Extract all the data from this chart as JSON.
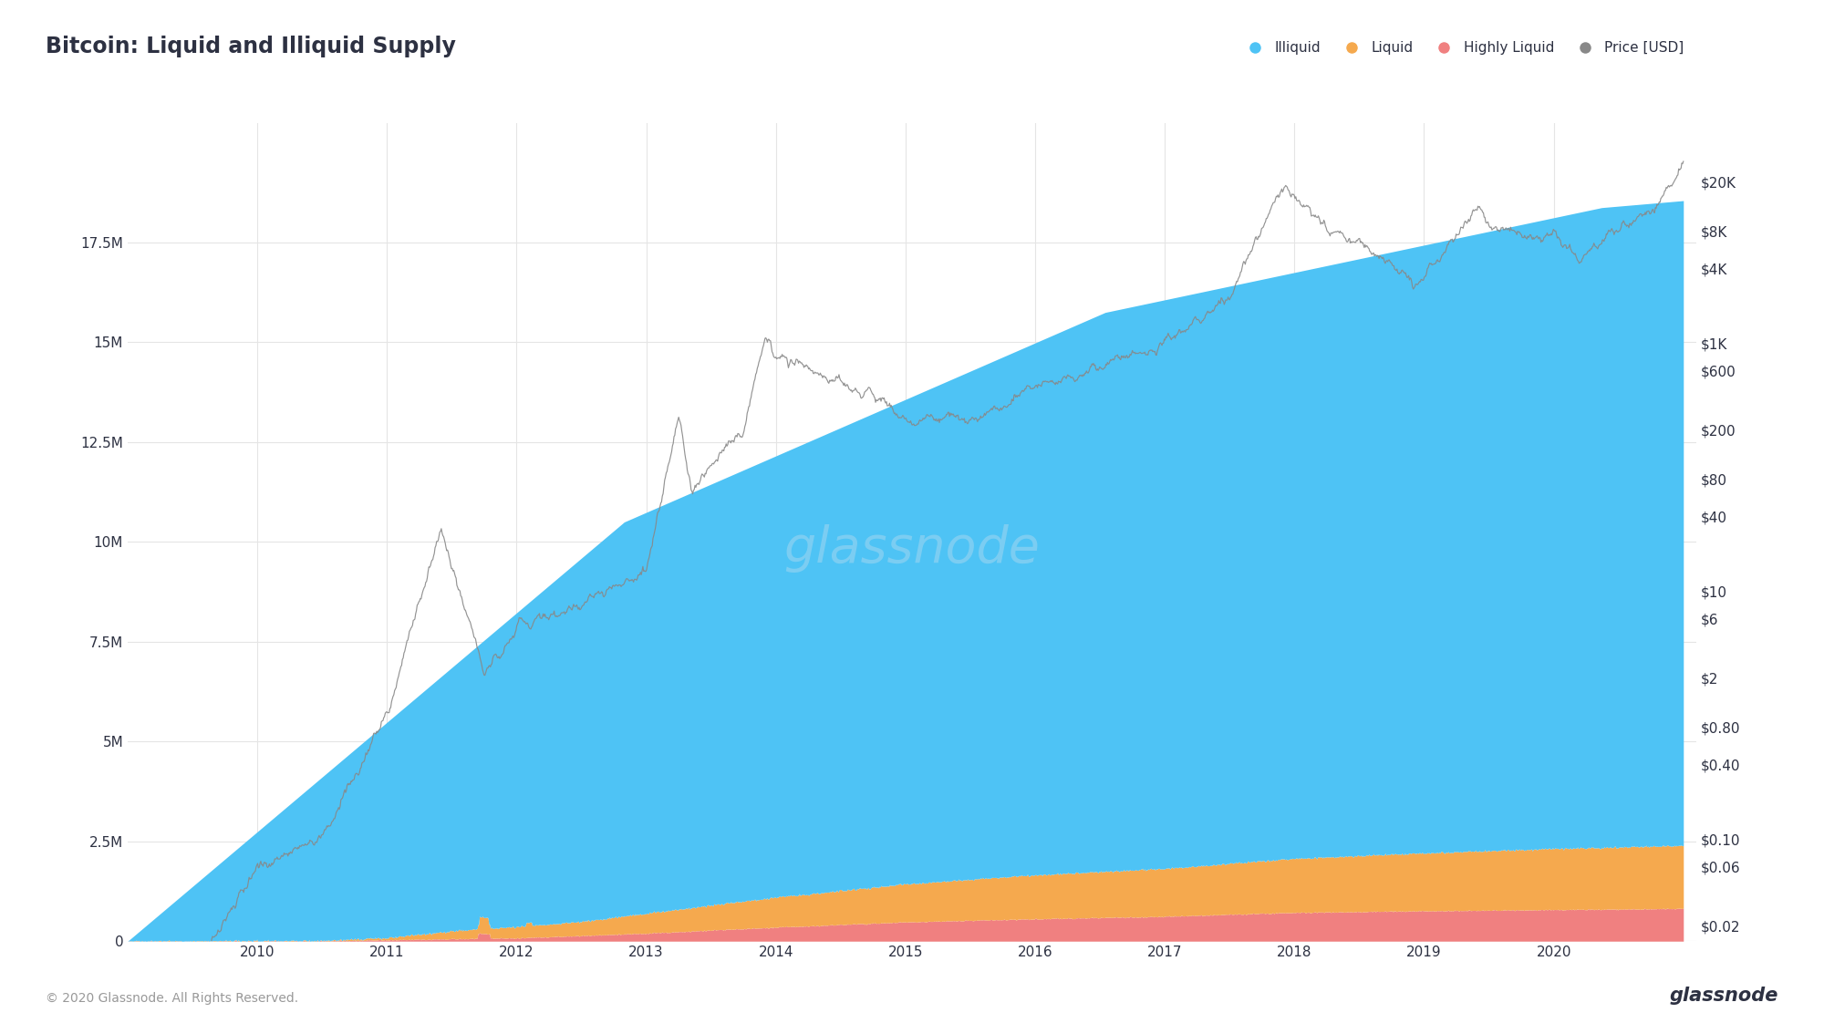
{
  "title": "Bitcoin: Liquid and Illiquid Supply",
  "background_color": "#ffffff",
  "plot_bg_color": "#ffffff",
  "text_color": "#2d3142",
  "grid_color": "#e5e5e5",
  "watermark": "glassnode",
  "footer": "© 2020 Glassnode. All Rights Reserved.",
  "footer_right": "glassnode",
  "colors": {
    "illiquid": "#4ec3f5",
    "liquid": "#f5a94e",
    "highly_liquid": "#f08080",
    "price": "#888888"
  },
  "y_left_ticks": [
    0,
    2500000,
    5000000,
    7500000,
    10000000,
    12500000,
    15000000,
    17500000
  ],
  "y_left_labels": [
    "0",
    "2.5M",
    "5M",
    "7.5M",
    "10M",
    "12.5M",
    "15M",
    "17.5M"
  ],
  "y_right_ticks_log": [
    0.02,
    0.06,
    0.1,
    0.4,
    0.8,
    2,
    6,
    10,
    40,
    80,
    200,
    600,
    1000,
    4000,
    8000,
    20000
  ],
  "y_right_labels": [
    "$0.02",
    "$0.06",
    "$0.10",
    "$0.40",
    "$0.80",
    "$2",
    "$6",
    "$10",
    "$40",
    "$80",
    "$200",
    "$600",
    "$1K",
    "$4K",
    "$8K",
    "$20K"
  ],
  "x_tick_years": [
    2010,
    2011,
    2012,
    2013,
    2014,
    2015,
    2016,
    2017,
    2018,
    2019,
    2020
  ],
  "legend_entries": [
    {
      "label": "Illiquid",
      "color": "#4ec3f5"
    },
    {
      "label": "Liquid",
      "color": "#f5a94e"
    },
    {
      "label": "Highly Liquid",
      "color": "#f08080"
    },
    {
      "label": "Price [USD]",
      "color": "#888888"
    }
  ]
}
